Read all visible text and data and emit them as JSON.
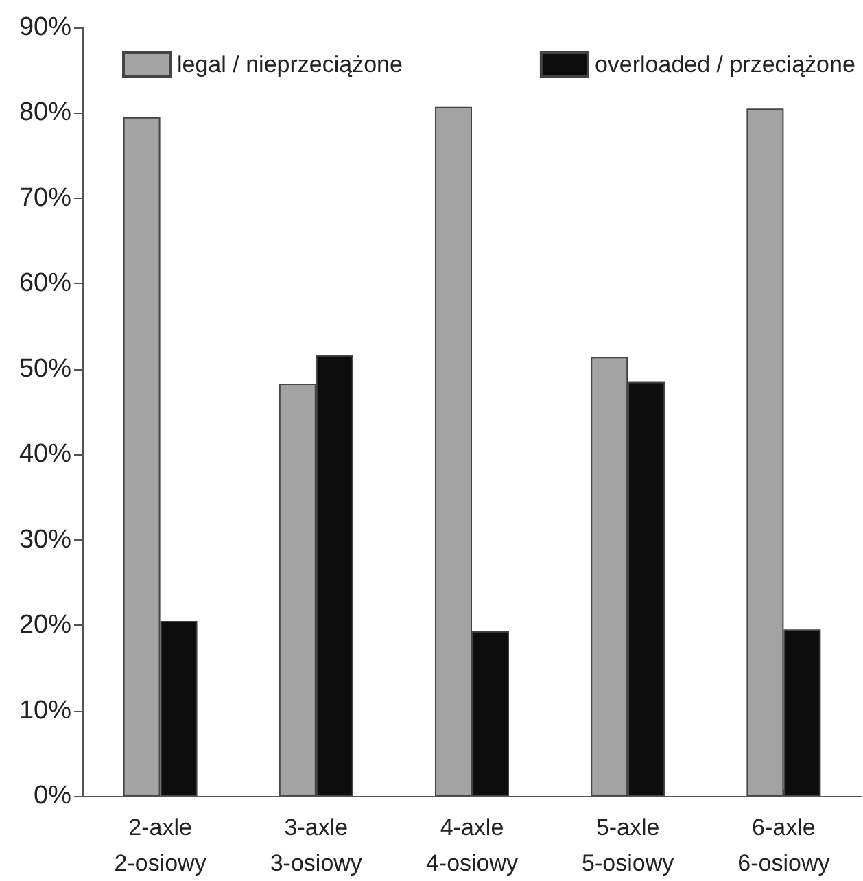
{
  "chart_data": {
    "type": "bar",
    "categories": [
      "2-axle\n2-osiowy",
      "3-axle\n3-osiowy",
      "4-axle\n4-osiowy",
      "5-axle\n5-osiowy",
      "6-axle\n6-osiowy"
    ],
    "series": [
      {
        "name": "legal / nieprzeciążone",
        "color": "#a3a3a3",
        "values": [
          79.5,
          48.3,
          80.7,
          51.4,
          80.5
        ]
      },
      {
        "name": "overloaded / przeciążone",
        "color": "#0d0d0d",
        "values": [
          20.5,
          51.6,
          19.3,
          48.5,
          19.5
        ]
      }
    ],
    "ylim": [
      0,
      90
    ],
    "yticks": [
      {
        "value": 0,
        "label": "0%"
      },
      {
        "value": 10,
        "label": "10%"
      },
      {
        "value": 20,
        "label": "20%"
      },
      {
        "value": 30,
        "label": "30%"
      },
      {
        "value": 40,
        "label": "40%"
      },
      {
        "value": 50,
        "label": "50%"
      },
      {
        "value": 60,
        "label": "60%"
      },
      {
        "value": 70,
        "label": "70%"
      },
      {
        "value": 80,
        "label": "80%"
      },
      {
        "value": 90,
        "label": "90%"
      }
    ],
    "grid": false,
    "legend": "top"
  }
}
